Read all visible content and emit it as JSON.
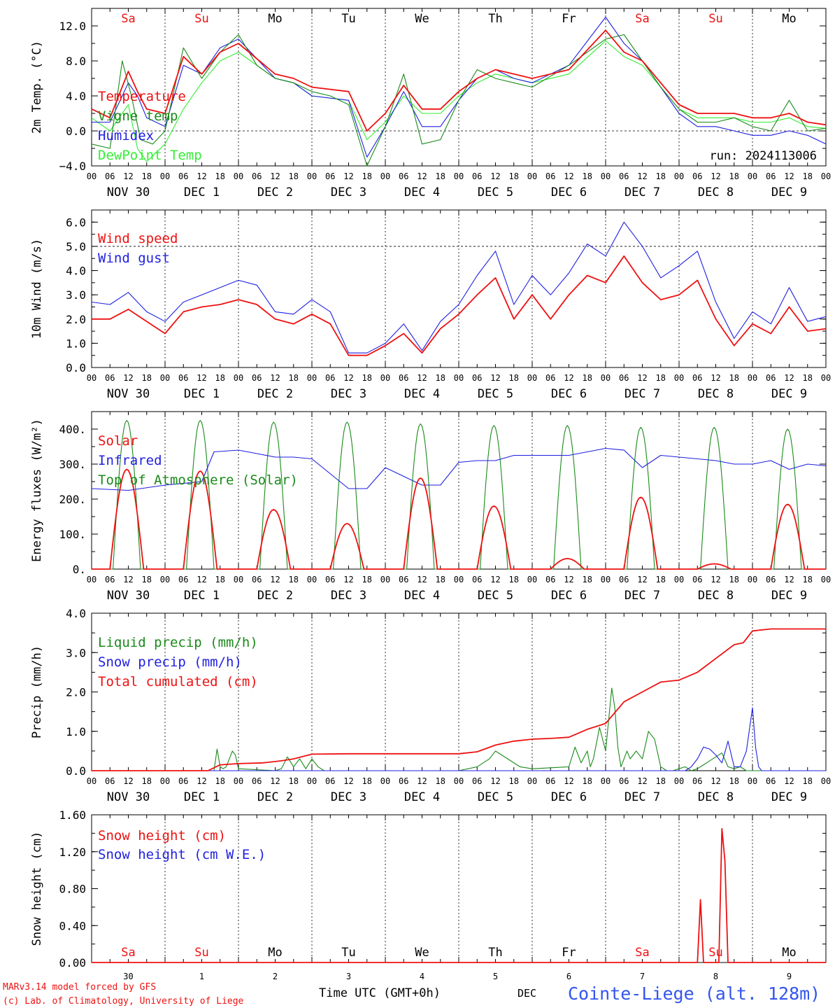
{
  "colors": {
    "red": "#ee1111",
    "green": "#1a8a1a",
    "blue": "#1f1fe0",
    "lightgreen": "#33ee33",
    "black": "#000000",
    "footer_blue": "#3355ee"
  },
  "days": [
    {
      "name": "Sa",
      "weekend": true
    },
    {
      "name": "Su",
      "weekend": true
    },
    {
      "name": "Mo",
      "weekend": false
    },
    {
      "name": "Tu",
      "weekend": false
    },
    {
      "name": "We",
      "weekend": false
    },
    {
      "name": "Th",
      "weekend": false
    },
    {
      "name": "Fr",
      "weekend": false
    },
    {
      "name": "Sa",
      "weekend": true
    },
    {
      "name": "Su",
      "weekend": true
    },
    {
      "name": "Mo",
      "weekend": false
    }
  ],
  "date_labels": [
    "NOV 30",
    "DEC  1",
    "DEC  2",
    "DEC  3",
    "DEC  4",
    "DEC  5",
    "DEC  6",
    "DEC  7",
    "DEC  8",
    "DEC  9"
  ],
  "hour_labels": [
    "00",
    "06",
    "12",
    "18"
  ],
  "final_hour_label": "00",
  "bottom_day_numbers": [
    "30",
    "1",
    "2",
    "3",
    "4",
    "5",
    "6",
    "7",
    "8",
    "9"
  ],
  "run_label": "run: 2024113006",
  "footer": {
    "model": "MARv3.14 model forced by GFS",
    "copyright": "(c) Lab. of Climatology, University of Liege",
    "time_axis": "Time UTC (GMT+0h)",
    "month": "DEC",
    "station": "Cointe-Liege (alt. 128m)"
  },
  "chart_data": [
    {
      "id": "temp",
      "type": "line",
      "ylabel": "2m Temp. (°C)",
      "ylim": [
        -4,
        14
      ],
      "yticks": [
        -4,
        0,
        4,
        8,
        12
      ],
      "ytick_labels": [
        "−4.0",
        "0.0",
        "4.0",
        "8.0",
        "12.0"
      ],
      "ref_line": 0,
      "x_unit": "hours since Nov 30 00 UTC",
      "series": [
        {
          "name": "Temperature",
          "color": "red",
          "x": [
            0,
            6,
            12,
            15,
            18,
            24,
            30,
            36,
            42,
            48,
            60,
            66,
            72,
            84,
            90,
            96,
            102,
            108,
            114,
            120,
            126,
            132,
            138,
            144,
            156,
            168,
            174,
            180,
            186,
            192,
            198,
            204,
            210,
            216,
            222,
            228,
            234,
            240
          ],
          "y": [
            2.5,
            1.5,
            6.8,
            4.5,
            2.5,
            2.0,
            8.5,
            6.5,
            9.0,
            10.0,
            6.5,
            6.0,
            5.0,
            4.5,
            0.0,
            2.0,
            5.2,
            2.5,
            2.5,
            4.5,
            6.0,
            7.0,
            6.5,
            6.0,
            7.0,
            11.5,
            9.0,
            8.0,
            5.5,
            3.0,
            2.0,
            2.0,
            2.0,
            1.5,
            1.5,
            2.0,
            1.0,
            0.7
          ]
        },
        {
          "name": "Vigne temp",
          "color": "green",
          "x": [
            0,
            6,
            10,
            13,
            16,
            20,
            24,
            30,
            36,
            42,
            48,
            54,
            60,
            66,
            72,
            78,
            84,
            90,
            96,
            102,
            108,
            114,
            120,
            126,
            132,
            138,
            144,
            156,
            168,
            174,
            180,
            186,
            192,
            198,
            204,
            210,
            216,
            222,
            228,
            234,
            240
          ],
          "y": [
            -1.5,
            -2.0,
            8.0,
            4.0,
            -1.0,
            -1.5,
            0.0,
            9.5,
            6.0,
            9.0,
            11.0,
            7.5,
            6.0,
            5.5,
            4.5,
            4.0,
            3.0,
            -4.0,
            0.5,
            6.5,
            -1.5,
            -1.0,
            3.5,
            7.0,
            6.0,
            5.5,
            5.0,
            7.5,
            10.5,
            11.0,
            8.0,
            5.0,
            2.5,
            1.0,
            1.0,
            1.5,
            0.5,
            0.0,
            3.5,
            0.0,
            0.3
          ]
        },
        {
          "name": "Humidex",
          "color": "blue",
          "x": [
            0,
            6,
            12,
            15,
            18,
            24,
            30,
            36,
            42,
            48,
            60,
            66,
            72,
            84,
            90,
            96,
            102,
            108,
            114,
            120,
            126,
            132,
            138,
            144,
            156,
            168,
            174,
            180,
            186,
            192,
            198,
            204,
            210,
            216,
            222,
            228,
            234,
            240
          ],
          "y": [
            1.0,
            1.0,
            5.5,
            4.0,
            1.5,
            0.5,
            7.5,
            6.5,
            9.5,
            10.5,
            6.0,
            5.5,
            4.0,
            3.5,
            -3.0,
            0.5,
            4.5,
            0.5,
            0.5,
            3.5,
            6.0,
            7.0,
            6.0,
            5.5,
            7.5,
            13.0,
            10.0,
            8.0,
            5.0,
            2.0,
            0.5,
            0.5,
            0.0,
            -0.5,
            -0.5,
            0.0,
            -0.5,
            -1.5
          ]
        },
        {
          "name": "DewPoint Temp",
          "color": "lightgreen",
          "x": [
            0,
            6,
            12,
            15,
            18,
            24,
            30,
            36,
            42,
            48,
            60,
            66,
            72,
            84,
            90,
            96,
            102,
            108,
            114,
            120,
            126,
            132,
            138,
            144,
            156,
            168,
            174,
            180,
            186,
            192,
            198,
            204,
            210,
            216,
            222,
            228,
            234,
            240
          ],
          "y": [
            1.5,
            0.0,
            3.0,
            -2.0,
            -3.5,
            -1.5,
            2.5,
            5.5,
            8.0,
            9.0,
            6.0,
            5.5,
            4.0,
            3.5,
            -1.0,
            1.0,
            4.0,
            2.0,
            2.0,
            4.0,
            5.5,
            6.5,
            6.0,
            5.5,
            6.5,
            10.3,
            8.5,
            7.5,
            5.0,
            2.5,
            1.5,
            1.5,
            1.5,
            1.0,
            1.0,
            1.5,
            0.5,
            0.3
          ]
        }
      ]
    },
    {
      "id": "wind",
      "type": "line",
      "ylabel": "10m Wind (m/s)",
      "ylim": [
        0,
        6.5
      ],
      "yticks": [
        0,
        1,
        2,
        3,
        4,
        5,
        6
      ],
      "ytick_labels": [
        "0.0",
        "1.0",
        "2.0",
        "3.0",
        "4.0",
        "5.0",
        "6.0"
      ],
      "ref_line": 5.0,
      "series": [
        {
          "name": "Wind speed",
          "color": "red",
          "x": [
            0,
            6,
            12,
            18,
            24,
            30,
            36,
            42,
            48,
            54,
            60,
            66,
            72,
            78,
            84,
            90,
            96,
            102,
            108,
            114,
            120,
            126,
            132,
            138,
            144,
            150,
            156,
            162,
            168,
            174,
            180,
            186,
            192,
            198,
            204,
            210,
            216,
            222,
            228,
            234,
            240
          ],
          "y": [
            2.0,
            2.0,
            2.4,
            1.9,
            1.4,
            2.3,
            2.5,
            2.6,
            2.8,
            2.6,
            2.0,
            1.8,
            2.2,
            1.8,
            0.5,
            0.5,
            0.9,
            1.4,
            0.6,
            1.6,
            2.2,
            3.0,
            3.7,
            2.0,
            3.0,
            2.0,
            3.0,
            3.8,
            3.5,
            4.6,
            3.5,
            2.8,
            3.0,
            3.6,
            2.0,
            0.9,
            1.8,
            1.4,
            2.5,
            1.5,
            1.6
          ]
        },
        {
          "name": "Wind gust",
          "color": "blue",
          "x": [
            0,
            6,
            12,
            18,
            24,
            30,
            36,
            42,
            48,
            54,
            60,
            66,
            72,
            78,
            84,
            90,
            96,
            102,
            108,
            114,
            120,
            126,
            132,
            138,
            144,
            150,
            156,
            162,
            168,
            174,
            180,
            186,
            192,
            198,
            204,
            210,
            216,
            222,
            228,
            234,
            240
          ],
          "y": [
            2.7,
            2.6,
            3.1,
            2.3,
            1.9,
            2.7,
            3.0,
            3.3,
            3.6,
            3.4,
            2.3,
            2.2,
            2.8,
            2.3,
            0.6,
            0.6,
            1.0,
            1.8,
            0.7,
            1.9,
            2.6,
            3.8,
            4.8,
            2.6,
            3.8,
            3.0,
            3.9,
            5.1,
            4.6,
            6.0,
            5.0,
            3.7,
            4.2,
            4.8,
            2.7,
            1.2,
            2.3,
            1.8,
            3.3,
            1.9,
            2.1
          ]
        }
      ]
    },
    {
      "id": "energy",
      "type": "line",
      "ylabel": "Energy fluxes (W/m²)",
      "ylim": [
        0,
        450
      ],
      "yticks": [
        0,
        100,
        200,
        300,
        400
      ],
      "ytick_labels": [
        "0.",
        "100.",
        "200.",
        "300.",
        "400."
      ],
      "solar_peaks": [
        285,
        280,
        170,
        130,
        260,
        180,
        30,
        205,
        15,
        185
      ],
      "toa_peaks": [
        425,
        425,
        420,
        420,
        415,
        410,
        410,
        405,
        405,
        400
      ],
      "series": [
        {
          "name": "Solar",
          "color": "red"
        },
        {
          "name": "Infrared",
          "color": "blue",
          "x": [
            0,
            12,
            24,
            36,
            40,
            48,
            54,
            60,
            66,
            72,
            84,
            90,
            96,
            108,
            114,
            120,
            126,
            132,
            138,
            144,
            156,
            168,
            174,
            180,
            186,
            192,
            204,
            210,
            216,
            222,
            228,
            234,
            240
          ],
          "y": [
            230,
            225,
            240,
            250,
            335,
            340,
            330,
            320,
            320,
            315,
            230,
            230,
            290,
            240,
            240,
            305,
            310,
            310,
            325,
            325,
            325,
            345,
            340,
            290,
            325,
            320,
            310,
            300,
            300,
            310,
            285,
            300,
            295
          ]
        },
        {
          "name": "Top of Atmosphere (Solar)",
          "color": "green"
        }
      ]
    },
    {
      "id": "precip",
      "type": "line",
      "ylabel": "Precip (mm/h)",
      "ylim": [
        0,
        4.0
      ],
      "yticks": [
        0,
        1,
        2,
        3,
        4
      ],
      "ytick_labels": [
        "0.0",
        "1.0",
        "2.0",
        "3.0",
        "4.0"
      ],
      "series": [
        {
          "name": "Liquid precip (mm/h)",
          "color": "green",
          "x": [
            0,
            40,
            41,
            42,
            43,
            44,
            46,
            47,
            48,
            60,
            62,
            64,
            66,
            68,
            70,
            72,
            74,
            76,
            120,
            126,
            130,
            132,
            140,
            144,
            156,
            158,
            160,
            162,
            163,
            164,
            166,
            168,
            170,
            171,
            172,
            173,
            174,
            175,
            176,
            178,
            180,
            182,
            184,
            186,
            188,
            190,
            192,
            194,
            196,
            198,
            200,
            202,
            204,
            206,
            208,
            210,
            212,
            214,
            216,
            240
          ],
          "y": [
            0,
            0,
            0.55,
            0.1,
            0.05,
            0.1,
            0.5,
            0.4,
            0.05,
            0.0,
            0.05,
            0.35,
            0.1,
            0.3,
            0.05,
            0.3,
            0.1,
            0.0,
            0.0,
            0.1,
            0.3,
            0.5,
            0.1,
            0.05,
            0.1,
            0.6,
            0.2,
            0.5,
            0.1,
            0.3,
            1.1,
            0.5,
            2.1,
            1.6,
            0.6,
            0.1,
            0.3,
            0.5,
            0.3,
            0.5,
            0.3,
            1.0,
            0.8,
            0.1,
            0.0,
            0.0,
            0.05,
            0.1,
            0.0,
            0.05,
            0.15,
            0.25,
            0.35,
            0.45,
            0.1,
            0.05,
            0.1,
            0.0,
            0.0,
            0.0
          ]
        },
        {
          "name": "Snow precip (mm/h)",
          "color": "blue",
          "x": [
            0,
            194,
            196,
            198,
            200,
            202,
            204,
            206,
            208,
            210,
            212,
            214,
            216,
            217,
            218,
            219,
            220,
            222,
            240
          ],
          "y": [
            0,
            0,
            0.1,
            0.3,
            0.6,
            0.55,
            0.4,
            0.2,
            0.75,
            0.1,
            0.1,
            0.5,
            1.6,
            0.6,
            0.1,
            0.0,
            0.0,
            0.0,
            0.0
          ]
        },
        {
          "name": "Total cumulated (cm)",
          "color": "red",
          "x": [
            0,
            38,
            42,
            48,
            56,
            62,
            66,
            72,
            84,
            96,
            108,
            120,
            126,
            132,
            138,
            144,
            150,
            156,
            162,
            168,
            174,
            180,
            186,
            192,
            198,
            204,
            210,
            213,
            216,
            222,
            228,
            240
          ],
          "y": [
            0,
            0,
            0.15,
            0.18,
            0.2,
            0.25,
            0.3,
            0.42,
            0.43,
            0.43,
            0.43,
            0.43,
            0.48,
            0.65,
            0.75,
            0.8,
            0.82,
            0.85,
            1.05,
            1.2,
            1.75,
            2.0,
            2.25,
            2.3,
            2.5,
            2.85,
            3.2,
            3.25,
            3.55,
            3.6,
            3.6,
            3.6
          ]
        }
      ]
    },
    {
      "id": "snow",
      "type": "line",
      "ylabel": "Snow height (cm)",
      "ylim": [
        0,
        1.6
      ],
      "yticks": [
        0,
        0.4,
        0.8,
        1.2,
        1.6
      ],
      "ytick_labels": [
        "0.00",
        "0.40",
        "0.80",
        "1.20",
        "1.60"
      ],
      "series": [
        {
          "name": "Snow height (cm)",
          "color": "red",
          "x": [
            0,
            198,
            199,
            200,
            201,
            204,
            205,
            206,
            207,
            208,
            240
          ],
          "y": [
            0,
            0,
            0.68,
            0.0,
            0.0,
            0.0,
            0.0,
            1.45,
            1.1,
            0.0,
            0.0
          ]
        },
        {
          "name": "Snow height (cm W.E.)",
          "color": "blue"
        }
      ]
    }
  ]
}
